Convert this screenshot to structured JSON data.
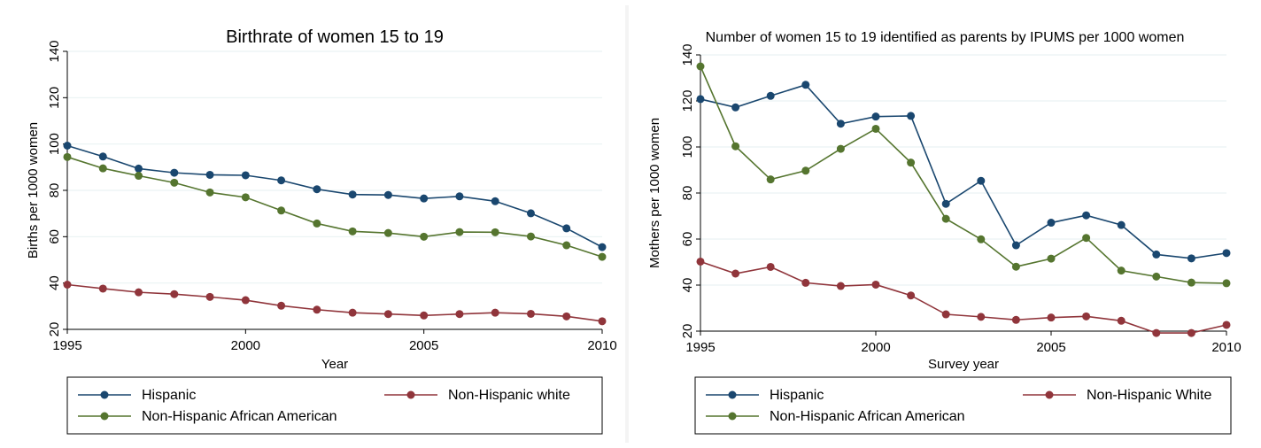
{
  "chart_data": [
    {
      "type": "line",
      "title": "Birthrate of women 15 to 19",
      "xlabel": "Year",
      "ylabel": "Births per 1000 women",
      "xlim": [
        1995,
        2010
      ],
      "ylim": [
        20,
        140
      ],
      "xticks": [
        1995,
        2000,
        2005,
        2010
      ],
      "yticks": [
        20,
        40,
        60,
        80,
        100,
        120,
        140
      ],
      "x": [
        1995,
        1996,
        1997,
        1998,
        1999,
        2000,
        2001,
        2002,
        2003,
        2004,
        2005,
        2006,
        2007,
        2008,
        2009,
        2010
      ],
      "grid": true,
      "legend_position": "bottom",
      "series": [
        {
          "name": "Hispanic",
          "color": "#1a476f",
          "values": [
            99.3,
            94.6,
            89.4,
            87.6,
            86.7,
            86.5,
            84.3,
            80.5,
            78.2,
            78.0,
            76.5,
            77.4,
            75.3,
            70.1,
            63.6,
            55.5
          ]
        },
        {
          "name": "Non-Hispanic white",
          "color": "#90353b",
          "values": [
            39.3,
            37.6,
            36.0,
            35.2,
            34.0,
            32.6,
            30.2,
            28.5,
            27.2,
            26.6,
            26.0,
            26.6,
            27.2,
            26.7,
            25.6,
            23.5
          ]
        },
        {
          "name": "Non-Hispanic African American",
          "color": "#55752f",
          "values": [
            94.4,
            89.5,
            86.3,
            83.3,
            79.1,
            77.0,
            71.3,
            65.7,
            62.3,
            61.6,
            60.0,
            62.0,
            61.9,
            60.1,
            56.3,
            51.3
          ]
        }
      ]
    },
    {
      "type": "line",
      "title": "Number of women 15 to 19 identified as parents by IPUMS per 1000 women",
      "xlabel": "Survey year",
      "ylabel": "Mothers per 1000 women",
      "xlim": [
        1995,
        2010
      ],
      "ylim": [
        20,
        140
      ],
      "xticks": [
        1995,
        2000,
        2005,
        2010
      ],
      "yticks": [
        20,
        40,
        60,
        80,
        100,
        120,
        140
      ],
      "x": [
        1995,
        1996,
        1997,
        1998,
        1999,
        2000,
        2001,
        2002,
        2003,
        2004,
        2005,
        2006,
        2007,
        2008,
        2009,
        2010
      ],
      "grid": true,
      "legend_position": "bottom",
      "series": [
        {
          "name": "Hispanic",
          "color": "#1a476f",
          "values": [
            120.8,
            117.2,
            122.2,
            127.0,
            110.1,
            113.2,
            113.5,
            75.3,
            85.3,
            57.3,
            67.1,
            70.3,
            66.1,
            53.3,
            51.6,
            53.9
          ]
        },
        {
          "name": "Non-Hispanic White",
          "color": "#90353b",
          "values": [
            50.2,
            45.0,
            47.9,
            41.0,
            39.6,
            40.2,
            35.5,
            27.3,
            26.2,
            24.9,
            25.9,
            26.4,
            24.5,
            19.2,
            19.2,
            22.7
          ]
        },
        {
          "name": "Non-Hispanic African American",
          "color": "#55752f",
          "values": [
            135.0,
            100.3,
            85.9,
            89.7,
            99.2,
            107.9,
            93.2,
            68.8,
            59.9,
            48.0,
            51.5,
            60.5,
            46.3,
            43.7,
            41.1,
            40.8
          ]
        }
      ]
    }
  ]
}
